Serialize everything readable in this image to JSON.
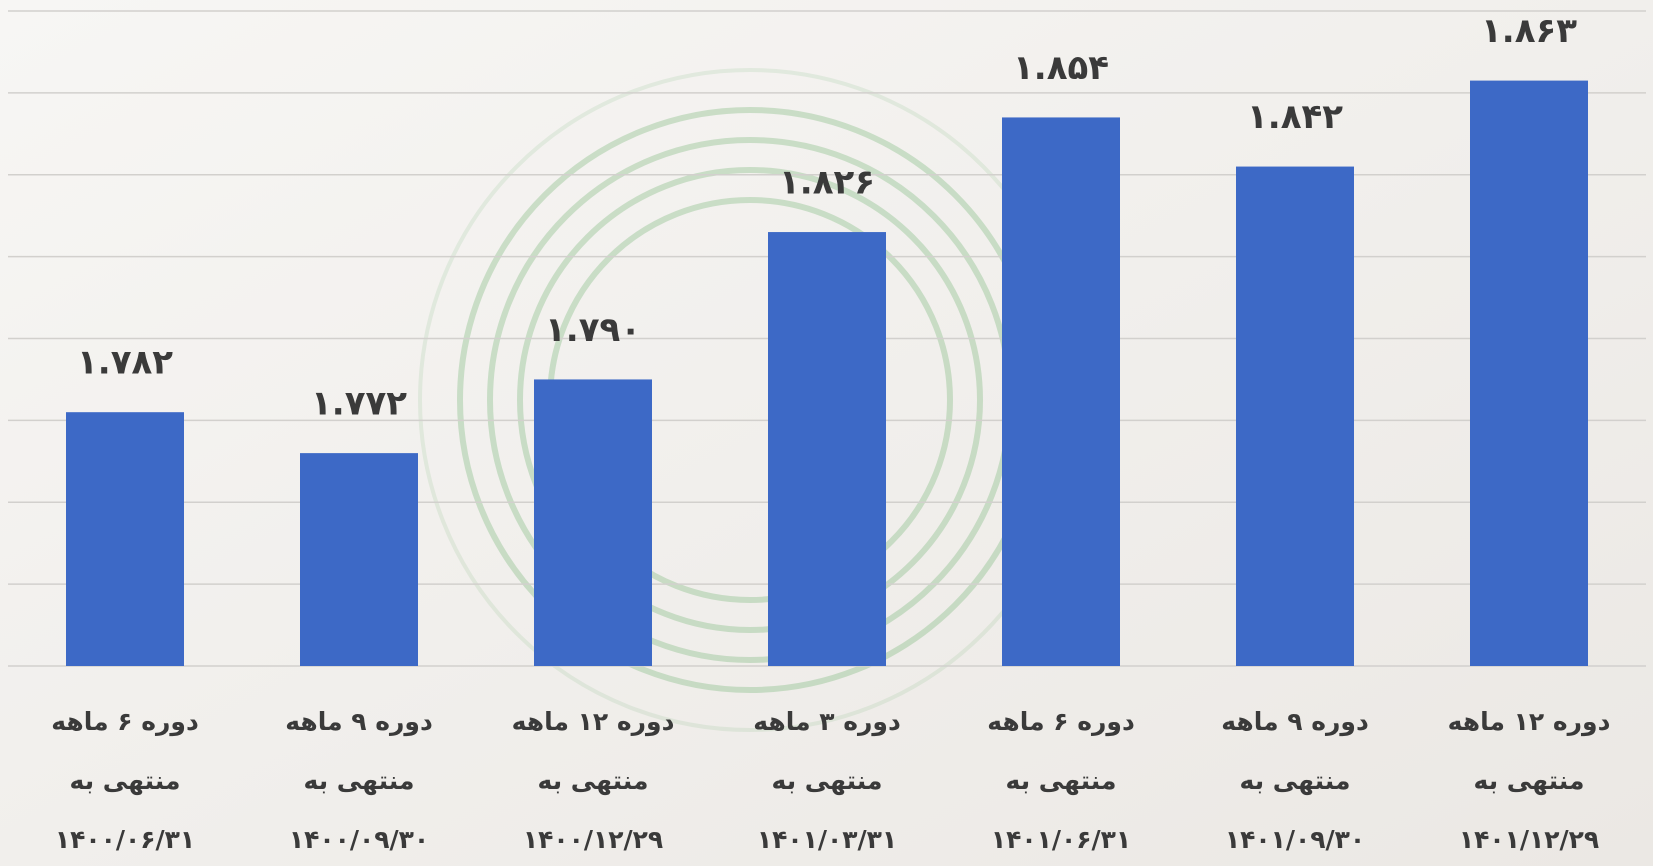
{
  "chart_data": {
    "type": "bar",
    "categories": [
      [
        "دوره ۶ ماهه",
        "منتهی به",
        "۱۴۰۰/۰۶/۳۱"
      ],
      [
        "دوره ۹ ماهه",
        "منتهی به",
        "۱۴۰۰/۰۹/۳۰"
      ],
      [
        "دوره ۱۲ ماهه",
        "منتهی به",
        "۱۴۰۰/۱۲/۲۹"
      ],
      [
        "دوره ۳ ماهه",
        "منتهی به",
        "۱۴۰۱/۰۳/۳۱"
      ],
      [
        "دوره ۶ ماهه",
        "منتهی به",
        "۱۴۰۱/۰۶/۳۱"
      ],
      [
        "دوره ۹ ماهه",
        "منتهی به",
        "۱۴۰۱/۰۹/۳۰"
      ],
      [
        "دوره ۱۲ ماهه",
        "منتهی به",
        "۱۴۰۱/۱۲/۲۹"
      ]
    ],
    "values": [
      1.782,
      1.772,
      1.79,
      1.826,
      1.854,
      1.842,
      1.863
    ],
    "value_labels": [
      "۱.۷۸۲",
      "۱.۷۷۲",
      "۱.۷۹۰",
      "۱.۸۲۶",
      "۱.۸۵۴",
      "۱.۸۴۲",
      "۱.۸۶۳"
    ],
    "color": "#3d69c6",
    "ylim": [
      1.72,
      1.88
    ],
    "yticks": [
      1.72,
      1.74,
      1.76,
      1.78,
      1.8,
      1.82,
      1.84,
      1.86,
      1.88
    ],
    "grid": true
  }
}
